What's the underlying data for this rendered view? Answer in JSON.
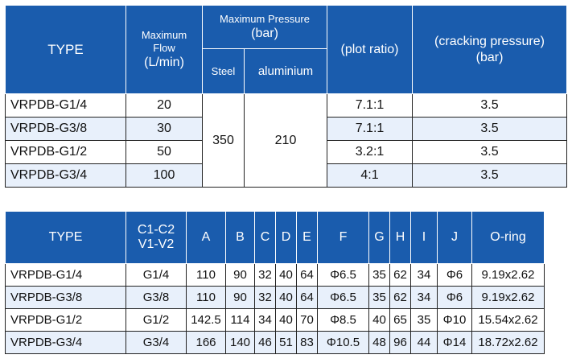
{
  "table1": {
    "headers": {
      "type": "TYPE",
      "max_flow_line1": "Maximum",
      "max_flow_line2": "Flow",
      "max_flow_line3": "(L/min)",
      "max_pressure_line1": "Maximum Pressure",
      "max_pressure_line2": "(bar)",
      "steel": "Steel",
      "aluminium": "aluminium",
      "plot_ratio": "(plot ratio)",
      "cracking_line1": "(cracking pressure)",
      "cracking_line2": "(bar)"
    },
    "pressure_steel": "350",
    "pressure_aluminium": "210",
    "rows": [
      {
        "type": "VRPDB-G1/4",
        "flow": "20",
        "ratio": "7.1:1",
        "cracking": "3.5"
      },
      {
        "type": "VRPDB-G3/8",
        "flow": "30",
        "ratio": "7.1:1",
        "cracking": "3.5"
      },
      {
        "type": "VRPDB-G1/2",
        "flow": "50",
        "ratio": "3.2:1",
        "cracking": "3.5"
      },
      {
        "type": "VRPDB-G3/4",
        "flow": "100",
        "ratio": "4:1",
        "cracking": "3.5"
      }
    ]
  },
  "table2": {
    "headers": [
      "TYPE",
      "C1-C2",
      "V1-V2",
      "A",
      "B",
      "C",
      "D",
      "E",
      "F",
      "G",
      "H",
      "I",
      "J",
      "O-ring"
    ],
    "rows": [
      [
        "VRPDB-G1/4",
        "G1/4",
        "110",
        "90",
        "32",
        "40",
        "64",
        "Φ6.5",
        "35",
        "62",
        "34",
        "Φ6",
        "9.19x2.62"
      ],
      [
        "VRPDB-G3/8",
        "G3/8",
        "110",
        "90",
        "32",
        "40",
        "64",
        "Φ6.5",
        "35",
        "62",
        "34",
        "Φ6",
        "9.19x2.62"
      ],
      [
        "VRPDB-G1/2",
        "G1/2",
        "142.5",
        "114",
        "34",
        "40",
        "70",
        "Φ8.5",
        "40",
        "65",
        "35",
        "Φ10",
        "15.54x2.62"
      ],
      [
        "VRPDB-G3/4",
        "G3/4",
        "166",
        "140",
        "46",
        "51",
        "83",
        "Φ10.5",
        "48",
        "96",
        "44",
        "Φ14",
        "18.72x2.62"
      ]
    ]
  },
  "colors": {
    "header_bg": "#1a5cad",
    "alt_row_bg": "#e8f0fb"
  }
}
